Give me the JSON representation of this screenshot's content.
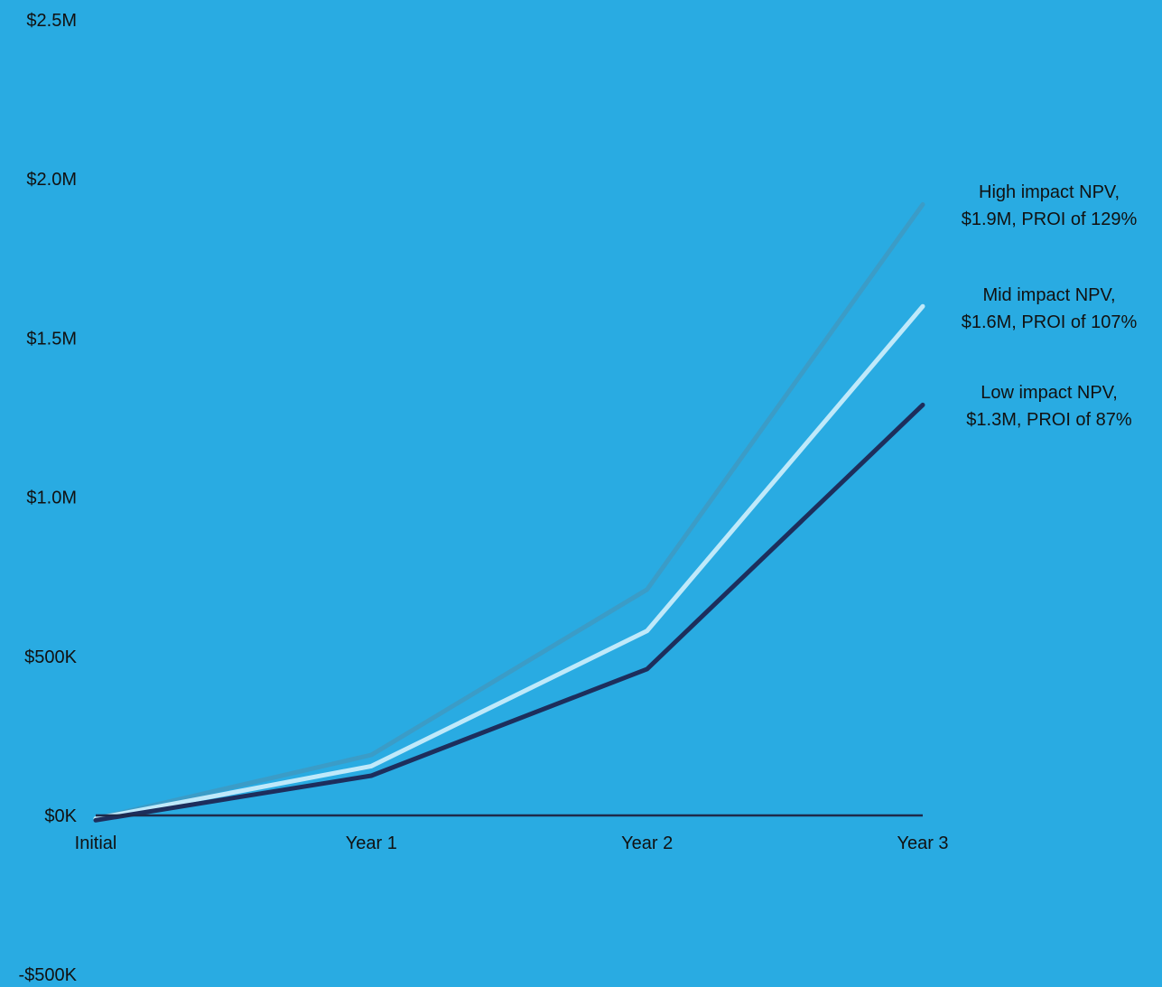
{
  "colors": {
    "background": "#29abe2",
    "text": "#111111",
    "zero_line": "#1e2a4a"
  },
  "chart_data": {
    "type": "line",
    "title": "",
    "xlabel": "",
    "ylabel": "",
    "categories": [
      "Initial",
      "Year 1",
      "Year 2",
      "Year 3"
    ],
    "y_ticks": [
      {
        "value": -500000,
        "label": "-$500K"
      },
      {
        "value": 0,
        "label": "$0K"
      },
      {
        "value": 500000,
        "label": "$500K"
      },
      {
        "value": 1000000,
        "label": "$1.0M"
      },
      {
        "value": 1500000,
        "label": "$1.5M"
      },
      {
        "value": 2000000,
        "label": "$2.0M"
      },
      {
        "value": 2500000,
        "label": "$2.5M"
      }
    ],
    "ylim": [
      -500000,
      2500000
    ],
    "grid": false,
    "legend": "none",
    "series": [
      {
        "key": "high",
        "color": "#3b9cc7",
        "values": [
          -10000,
          190000,
          710000,
          1920000
        ],
        "annotation": [
          "High impact NPV,",
          "$1.9M, PROI of 129%"
        ]
      },
      {
        "key": "mid",
        "color": "#bfe9fa",
        "values": [
          -10000,
          155000,
          580000,
          1600000
        ],
        "annotation": [
          "Mid impact NPV,",
          "$1.6M, PROI of 107%"
        ]
      },
      {
        "key": "low",
        "color": "#1d2e5c",
        "values": [
          -15000,
          125000,
          460000,
          1290000
        ],
        "annotation": [
          "Low impact NPV,",
          "$1.3M, PROI of 87%"
        ]
      }
    ]
  }
}
